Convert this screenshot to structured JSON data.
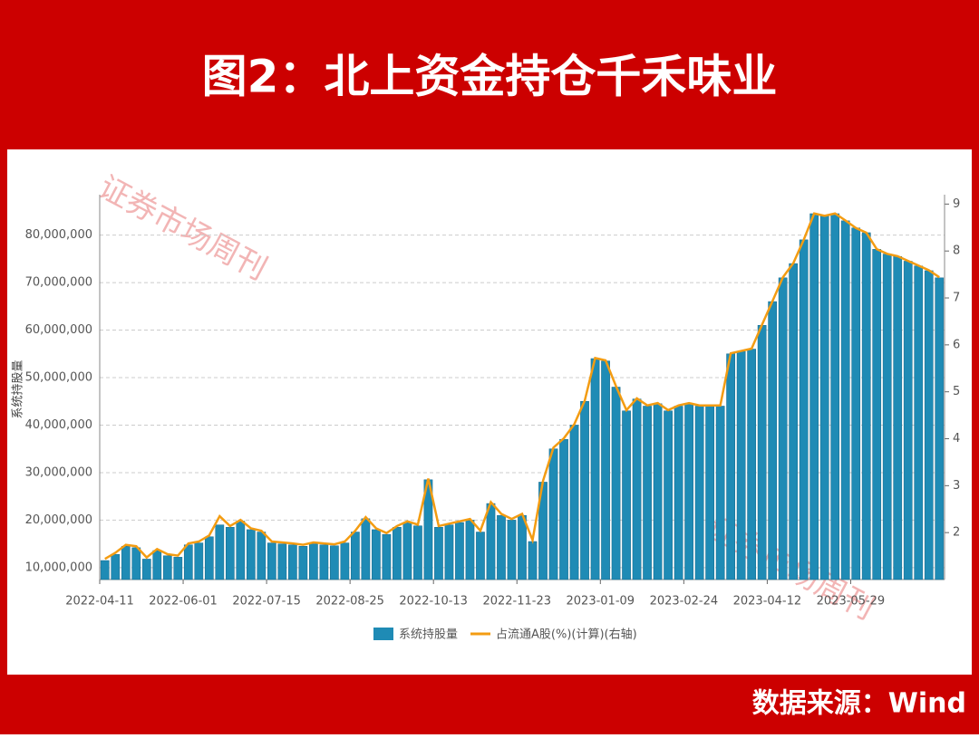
{
  "header": {
    "title": "图2：北上资金持仓千禾味业"
  },
  "footer": {
    "source": "数据来源：Wind"
  },
  "chart_data": {
    "type": "bar",
    "watermark": "证券市场周刊",
    "y_label": "系统持股量",
    "categories": [
      "2022-04-11",
      null,
      null,
      null,
      null,
      null,
      null,
      null,
      "2022-06-01",
      null,
      null,
      null,
      null,
      null,
      null,
      null,
      "2022-07-15",
      null,
      null,
      null,
      null,
      null,
      null,
      null,
      "2022-08-25",
      null,
      null,
      null,
      null,
      null,
      null,
      null,
      "2022-10-13",
      null,
      null,
      null,
      null,
      null,
      null,
      null,
      "2022-11-23",
      null,
      null,
      null,
      null,
      null,
      null,
      null,
      "2023-01-09",
      null,
      null,
      null,
      null,
      null,
      null,
      null,
      "2023-02-24",
      null,
      null,
      null,
      null,
      null,
      null,
      null,
      "2023-04-12",
      null,
      null,
      null,
      null,
      null,
      null,
      null,
      "2023-05-29",
      null,
      null,
      null,
      null,
      null,
      null,
      null,
      null
    ],
    "series": [
      {
        "name": "系统持股量",
        "color": "#1f8bb5",
        "values": [
          11500000,
          12800000,
          14500000,
          14200000,
          11800000,
          13600000,
          12500000,
          12200000,
          14800000,
          15200000,
          16500000,
          19000000,
          18500000,
          19800000,
          18000000,
          17500000,
          15200000,
          15000000,
          14800000,
          14500000,
          15000000,
          14800000,
          14600000,
          15200000,
          17500000,
          20300000,
          18000000,
          17000000,
          18500000,
          19500000,
          18800000,
          28500000,
          18500000,
          19000000,
          19500000,
          20000000,
          17500000,
          23500000,
          21000000,
          20000000,
          21000000,
          15500000,
          28000000,
          35000000,
          37000000,
          40000000,
          45000000,
          54000000,
          53500000,
          48000000,
          43000000,
          45500000,
          44000000,
          44500000,
          43000000,
          44000000,
          44500000,
          44000000,
          44000000,
          44000000,
          55000000,
          55500000,
          56000000,
          61000000,
          66000000,
          71000000,
          74000000,
          79000000,
          84500000,
          84000000,
          84500000,
          83000000,
          81500000,
          80500000,
          77000000,
          76000000,
          75500000,
          74500000,
          73500000,
          72500000,
          71000000
        ]
      },
      {
        "name": "占流通A股(%)(计算)(右轴)",
        "type": "line",
        "axis": "y2",
        "color": "#f39c12",
        "values": [
          1.44,
          1.57,
          1.74,
          1.71,
          1.47,
          1.65,
          1.54,
          1.51,
          1.77,
          1.81,
          1.94,
          2.35,
          2.14,
          2.27,
          2.09,
          2.04,
          1.81,
          1.79,
          1.77,
          1.74,
          1.79,
          1.77,
          1.75,
          1.81,
          2.04,
          2.33,
          2.09,
          1.99,
          2.14,
          2.24,
          2.17,
          3.15,
          2.14,
          2.19,
          2.24,
          2.29,
          2.04,
          2.65,
          2.4,
          2.29,
          2.4,
          1.84,
          3.1,
          3.81,
          4.01,
          4.31,
          4.81,
          5.72,
          5.67,
          5.12,
          4.61,
          4.86,
          4.71,
          4.76,
          4.61,
          4.71,
          4.76,
          4.71,
          4.71,
          4.71,
          5.82,
          5.87,
          5.92,
          6.43,
          6.93,
          7.44,
          7.74,
          8.24,
          8.8,
          8.75,
          8.8,
          8.65,
          8.49,
          8.39,
          8.04,
          7.94,
          7.89,
          7.79,
          7.69,
          7.59,
          7.44
        ]
      }
    ],
    "ylim": [
      7500000,
      88500000
    ],
    "yticks": [
      {
        "value": 10000000,
        "label": "10,000,000"
      },
      {
        "value": 20000000,
        "label": "20,000,000"
      },
      {
        "value": 30000000,
        "label": "30,000,000"
      },
      {
        "value": 40000000,
        "label": "40,000,000"
      },
      {
        "value": 50000000,
        "label": "50,000,000"
      },
      {
        "value": 60000000,
        "label": "60,000,000"
      },
      {
        "value": 70000000,
        "label": "70,000,000"
      },
      {
        "value": 80000000,
        "label": "80,000,000"
      }
    ],
    "y2lim": [
      1.0,
      9.2
    ],
    "y2ticks": [
      2,
      3,
      4,
      5,
      6,
      7,
      8,
      9
    ],
    "grid": true
  }
}
